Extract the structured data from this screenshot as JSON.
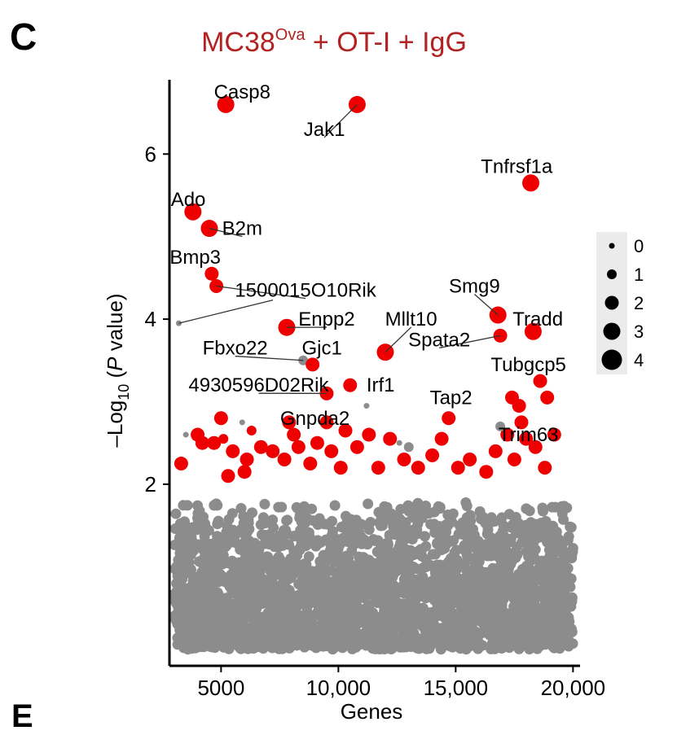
{
  "panel_letter": "C",
  "next_panel_letter": "E",
  "chart_data": {
    "type": "scatter",
    "title": {
      "main": "MC38",
      "superscript": "Ova",
      "rest": " + OT-I + IgG"
    },
    "xlabel": "Genes",
    "ylabel": {
      "prefix": "–Log",
      "subscript": "10",
      "open": " (",
      "italic": "P",
      "rest": " value)"
    },
    "xlim": [
      2800,
      20300
    ],
    "ylim": [
      -0.2,
      6.9
    ],
    "xticks": [
      5000,
      10000,
      15000,
      20000
    ],
    "xtick_labels": [
      "5000",
      "10,000",
      "15,000",
      "20,000"
    ],
    "yticks": [
      2,
      4,
      6
    ],
    "ytick_labels": [
      "2",
      "4",
      "6"
    ],
    "colors": {
      "significant": "#ee0000",
      "nonsignificant": "#8c8c8c",
      "title": "#b22222"
    },
    "legend": {
      "placement": "right",
      "sizes": [
        0,
        1,
        2,
        3,
        4
      ],
      "labels": [
        "0",
        "1",
        "2",
        "3",
        "4"
      ]
    },
    "background_cloud": {
      "x_range": [
        3000,
        20000
      ],
      "y_range": [
        0.0,
        1.8
      ],
      "color": "#8c8c8c"
    },
    "labeled_genes": [
      {
        "gene": "Casp8",
        "x": 5200,
        "y": 6.6,
        "size": 3,
        "sig": true,
        "lx": 5900,
        "ly": 6.75
      },
      {
        "gene": "Jak1",
        "x": 10800,
        "y": 6.6,
        "size": 3,
        "sig": true,
        "lx": 9400,
        "ly": 6.3
      },
      {
        "gene": "Tnfrsf1a",
        "x": 18200,
        "y": 5.65,
        "size": 3,
        "sig": true,
        "lx": 17600,
        "ly": 5.85
      },
      {
        "gene": "Ado",
        "x": 3800,
        "y": 5.3,
        "size": 3,
        "sig": true,
        "lx": 3600,
        "ly": 5.45
      },
      {
        "gene": "B2m",
        "x": 4500,
        "y": 5.1,
        "size": 3,
        "sig": true,
        "lx": 5900,
        "ly": 5.1
      },
      {
        "gene": "Bmp3",
        "x": 4600,
        "y": 4.55,
        "size": 2,
        "sig": true,
        "lx": 3900,
        "ly": 4.75
      },
      {
        "gene": "1500015O10Rik",
        "x": 4800,
        "y": 4.4,
        "size": 2,
        "sig": true,
        "lx": 8600,
        "ly": 4.35
      },
      {
        "gene": "Smg9",
        "x": 16800,
        "y": 4.05,
        "size": 3,
        "sig": true,
        "lx": 15800,
        "ly": 4.4
      },
      {
        "gene": "Tradd",
        "x": 18300,
        "y": 3.85,
        "size": 3,
        "sig": true,
        "lx": 18500,
        "ly": 4.0
      },
      {
        "gene": "Enpp2",
        "x": 7800,
        "y": 3.9,
        "size": 3,
        "sig": true,
        "lx": 9500,
        "ly": 4.0
      },
      {
        "gene": "Mllt10",
        "x": 12000,
        "y": 3.6,
        "size": 3,
        "sig": true,
        "lx": 13100,
        "ly": 4.0
      },
      {
        "gene": "Spata2",
        "x": 16900,
        "y": 3.8,
        "size": 2,
        "sig": true,
        "lx": 14300,
        "ly": 3.75
      },
      {
        "gene": "Fbxo22",
        "x": 8500,
        "y": 3.5,
        "size": 1,
        "sig": false,
        "lx": 5600,
        "ly": 3.65
      },
      {
        "gene": "Gjc1",
        "x": 8900,
        "y": 3.45,
        "size": 2,
        "sig": true,
        "lx": 9300,
        "ly": 3.65
      },
      {
        "gene": "Tubgcp5",
        "x": 18600,
        "y": 3.25,
        "size": 2,
        "sig": true,
        "lx": 18100,
        "ly": 3.45
      },
      {
        "gene": "4930596D02Rik",
        "x": 9500,
        "y": 3.1,
        "size": 2,
        "sig": true,
        "lx": 6600,
        "ly": 3.2
      },
      {
        "gene": "Irf1",
        "x": 10500,
        "y": 3.2,
        "size": 2,
        "sig": true,
        "lx": 11800,
        "ly": 3.2
      },
      {
        "gene": "Tap2",
        "x": 14700,
        "y": 2.8,
        "size": 2,
        "sig": true,
        "lx": 14800,
        "ly": 3.05
      },
      {
        "gene": "Gnpda2",
        "x": 9500,
        "y": 2.75,
        "size": 2,
        "sig": true,
        "lx": 9000,
        "ly": 2.8
      },
      {
        "gene": "Trim63",
        "x": 18000,
        "y": 2.55,
        "size": 2,
        "sig": true,
        "lx": 18100,
        "ly": 2.6
      }
    ],
    "extra_points": [
      {
        "x": 3200,
        "y": 3.95,
        "size": 0,
        "sig": false
      },
      {
        "x": 11200,
        "y": 2.95,
        "size": 0,
        "sig": false
      },
      {
        "x": 5900,
        "y": 2.75,
        "size": 0,
        "sig": false
      },
      {
        "x": 3500,
        "y": 2.6,
        "size": 0,
        "sig": false
      },
      {
        "x": 3300,
        "y": 2.25,
        "size": 2,
        "sig": true
      },
      {
        "x": 4000,
        "y": 2.6,
        "size": 2,
        "sig": true
      },
      {
        "x": 4200,
        "y": 2.5,
        "size": 2,
        "sig": true
      },
      {
        "x": 5000,
        "y": 2.8,
        "size": 2,
        "sig": true
      },
      {
        "x": 4700,
        "y": 2.5,
        "size": 2,
        "sig": true
      },
      {
        "x": 5100,
        "y": 2.55,
        "size": 1,
        "sig": true
      },
      {
        "x": 5500,
        "y": 2.4,
        "size": 2,
        "sig": true
      },
      {
        "x": 5300,
        "y": 2.1,
        "size": 2,
        "sig": true
      },
      {
        "x": 6100,
        "y": 2.3,
        "size": 2,
        "sig": true
      },
      {
        "x": 6700,
        "y": 2.45,
        "size": 2,
        "sig": true
      },
      {
        "x": 6300,
        "y": 2.65,
        "size": 1,
        "sig": true
      },
      {
        "x": 7200,
        "y": 2.4,
        "size": 2,
        "sig": true
      },
      {
        "x": 7700,
        "y": 2.3,
        "size": 2,
        "sig": true
      },
      {
        "x": 8100,
        "y": 2.6,
        "size": 2,
        "sig": true
      },
      {
        "x": 6000,
        "y": 2.15,
        "size": 2,
        "sig": true
      },
      {
        "x": 8800,
        "y": 2.25,
        "size": 2,
        "sig": true
      },
      {
        "x": 9100,
        "y": 2.5,
        "size": 2,
        "sig": true
      },
      {
        "x": 9700,
        "y": 2.4,
        "size": 2,
        "sig": true
      },
      {
        "x": 10300,
        "y": 2.65,
        "size": 2,
        "sig": true
      },
      {
        "x": 10100,
        "y": 2.2,
        "size": 2,
        "sig": true
      },
      {
        "x": 10800,
        "y": 2.45,
        "size": 2,
        "sig": true
      },
      {
        "x": 11300,
        "y": 2.6,
        "size": 2,
        "sig": true
      },
      {
        "x": 11700,
        "y": 2.2,
        "size": 2,
        "sig": true
      },
      {
        "x": 12200,
        "y": 2.55,
        "size": 2,
        "sig": true
      },
      {
        "x": 12800,
        "y": 2.3,
        "size": 2,
        "sig": true
      },
      {
        "x": 13400,
        "y": 2.2,
        "size": 2,
        "sig": true
      },
      {
        "x": 13000,
        "y": 2.45,
        "size": 1,
        "sig": false
      },
      {
        "x": 12600,
        "y": 2.5,
        "size": 0,
        "sig": false
      },
      {
        "x": 14000,
        "y": 2.35,
        "size": 2,
        "sig": true
      },
      {
        "x": 14400,
        "y": 2.55,
        "size": 2,
        "sig": true
      },
      {
        "x": 15100,
        "y": 2.2,
        "size": 2,
        "sig": true
      },
      {
        "x": 15600,
        "y": 2.3,
        "size": 2,
        "sig": true
      },
      {
        "x": 16300,
        "y": 2.15,
        "size": 2,
        "sig": true
      },
      {
        "x": 16700,
        "y": 2.4,
        "size": 2,
        "sig": true
      },
      {
        "x": 17200,
        "y": 2.6,
        "size": 2,
        "sig": true
      },
      {
        "x": 17500,
        "y": 2.3,
        "size": 2,
        "sig": true
      },
      {
        "x": 17800,
        "y": 2.75,
        "size": 2,
        "sig": true
      },
      {
        "x": 18400,
        "y": 2.45,
        "size": 2,
        "sig": true
      },
      {
        "x": 18800,
        "y": 2.2,
        "size": 2,
        "sig": true
      },
      {
        "x": 17700,
        "y": 2.95,
        "size": 2,
        "sig": true
      },
      {
        "x": 17400,
        "y": 3.05,
        "size": 2,
        "sig": true
      },
      {
        "x": 18900,
        "y": 3.05,
        "size": 2,
        "sig": true
      },
      {
        "x": 19200,
        "y": 2.6,
        "size": 2,
        "sig": true
      },
      {
        "x": 16900,
        "y": 2.7,
        "size": 1,
        "sig": false
      },
      {
        "x": 7900,
        "y": 2.75,
        "size": 2,
        "sig": true
      },
      {
        "x": 8300,
        "y": 2.45,
        "size": 2,
        "sig": true
      }
    ]
  }
}
